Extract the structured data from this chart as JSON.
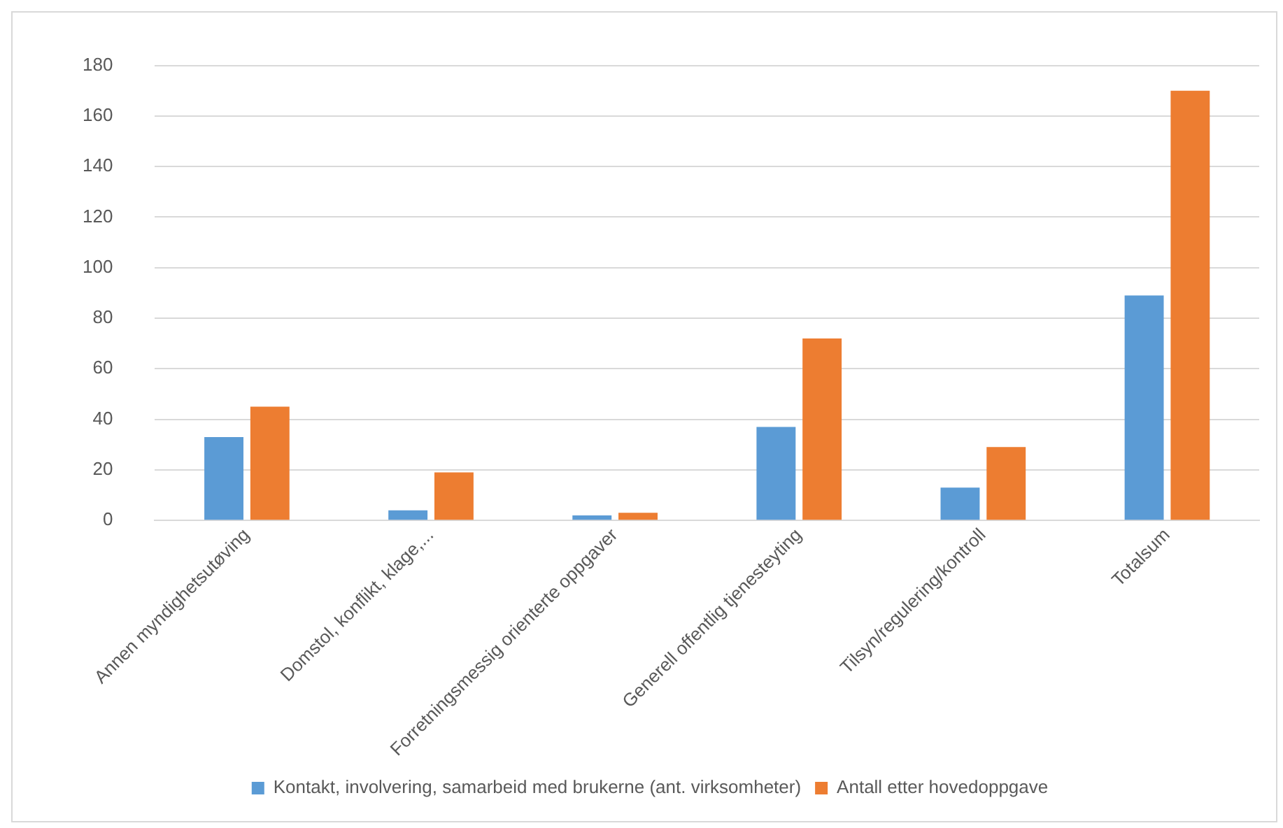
{
  "chart_data": {
    "type": "bar",
    "categories": [
      "Annen myndighetsutøving",
      "Domstol, konflikt, klage,...",
      "Forretningsmessig orienterte oppgaver",
      "Generell offentlig tjenesteyting",
      "Tilsyn/regulering/kontroll",
      "Totalsum"
    ],
    "series": [
      {
        "name": "Kontakt, involvering, samarbeid med brukerne (ant. virksomheter)",
        "color": "#5b9bd5",
        "values": [
          33,
          4,
          2,
          37,
          13,
          89
        ]
      },
      {
        "name": "Antall etter hovedoppgave",
        "color": "#ed7d31",
        "values": [
          45,
          19,
          3,
          72,
          29,
          170
        ]
      }
    ],
    "ylim": [
      0,
      180
    ],
    "yticks": [
      0,
      20,
      40,
      60,
      80,
      100,
      120,
      140,
      160,
      180
    ],
    "grid": "y",
    "legend": "bottom"
  }
}
